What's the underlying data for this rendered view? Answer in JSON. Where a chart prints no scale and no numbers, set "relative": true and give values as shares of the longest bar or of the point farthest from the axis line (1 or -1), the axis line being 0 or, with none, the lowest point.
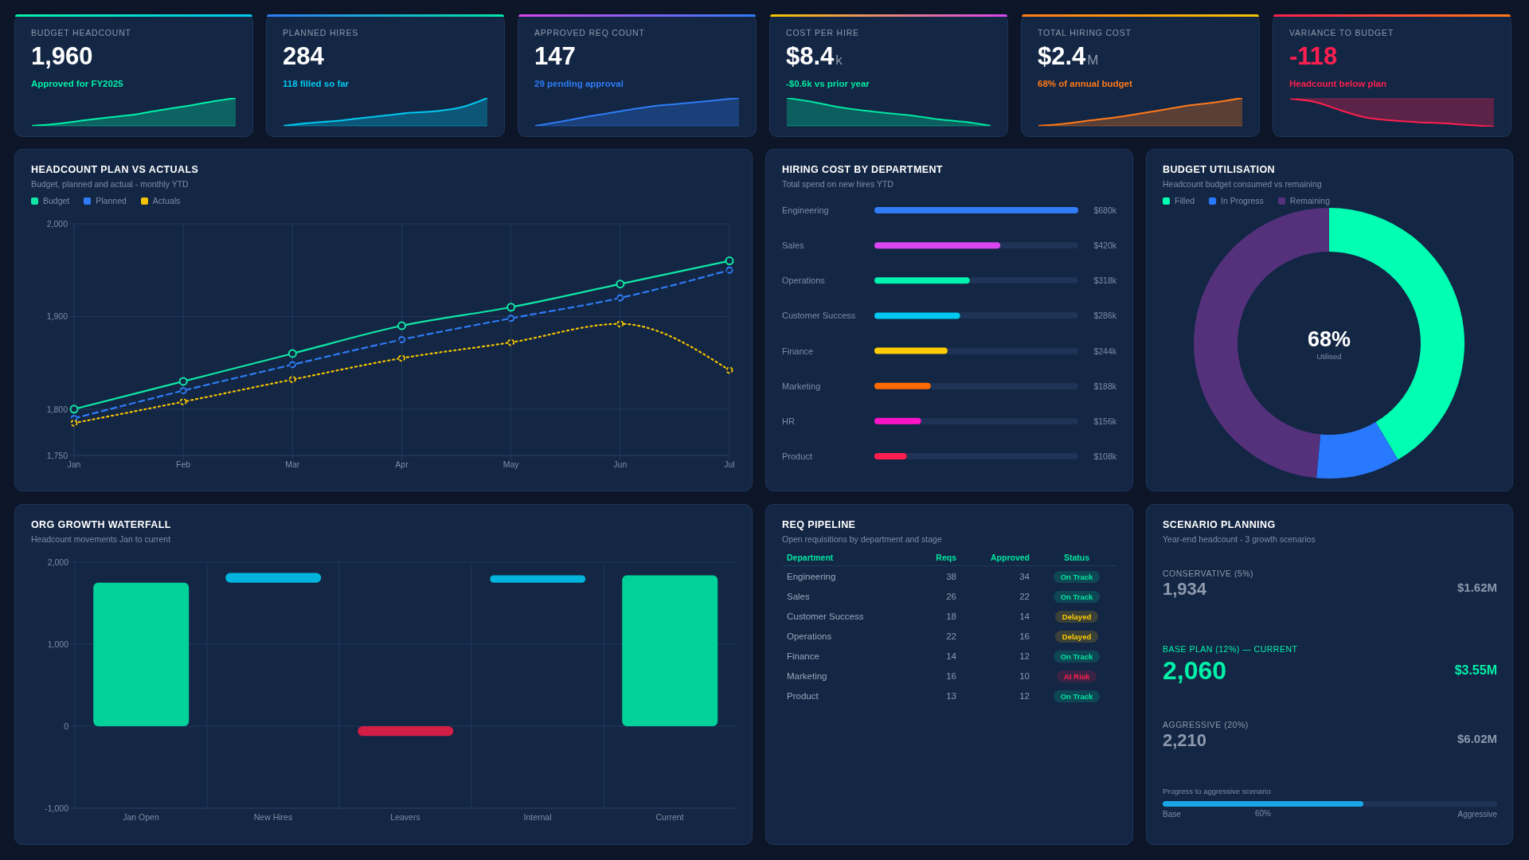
{
  "chart_data": [
    {
      "type": "area",
      "title": "BUDGET HEADCOUNT",
      "subtitle": "Approved for FY2025",
      "annotations": [
        "1,960"
      ],
      "relative": true,
      "categories": [
        null,
        null,
        null,
        null,
        null,
        null,
        null,
        null,
        null
      ],
      "values": [
        0,
        0.07,
        0.19,
        0.3,
        0.4,
        0.56,
        0.7,
        0.86,
        1
      ],
      "color": "#00f0a8"
    },
    {
      "type": "area",
      "title": "PLANNED HIRES",
      "subtitle": "118 filled so far",
      "annotations": [
        "284"
      ],
      "relative": true,
      "categories": [
        null,
        null,
        null,
        null,
        null,
        null,
        null,
        null,
        null
      ],
      "values": [
        0,
        0.1,
        0.17,
        0.27,
        0.37,
        0.47,
        0.53,
        0.67,
        1
      ],
      "color": "#00c8f0"
    },
    {
      "type": "area",
      "title": "APPROVED REQ COUNT",
      "subtitle": "29 pending approval",
      "annotations": [
        "147"
      ],
      "relative": true,
      "categories": [
        null,
        null,
        null,
        null,
        null,
        null,
        null,
        null,
        null
      ],
      "values": [
        0,
        0.15,
        0.32,
        0.47,
        0.62,
        0.74,
        0.82,
        0.91,
        1
      ],
      "color": "#2f7cf6"
    },
    {
      "type": "area",
      "title": "COST PER HIRE",
      "subtitle": "-$0.6k vs prior year",
      "annotations": [
        "$8.4",
        "k"
      ],
      "relative": true,
      "categories": [
        null,
        null,
        null,
        null,
        null,
        null,
        null,
        null,
        null
      ],
      "values": [
        1,
        0.86,
        0.68,
        0.55,
        0.45,
        0.36,
        0.23,
        0.14,
        0
      ],
      "color": "#00e6a0"
    },
    {
      "type": "area",
      "title": "TOTAL HIRING COST",
      "subtitle": "68% of annual budget",
      "annotations": [
        "$2.4",
        "M"
      ],
      "relative": true,
      "categories": [
        null,
        null,
        null,
        null,
        null,
        null,
        null,
        null,
        null
      ],
      "values": [
        0,
        0.07,
        0.19,
        0.3,
        0.44,
        0.59,
        0.74,
        0.85,
        1
      ],
      "color": "#ff7a1a"
    },
    {
      "type": "area",
      "title": "VARIANCE TO BUDGET",
      "subtitle": "Headcount below plan",
      "annotations": [
        "-118"
      ],
      "relative": true,
      "categories": [
        null,
        null,
        null,
        null,
        null,
        null,
        null,
        null,
        null
      ],
      "values": [
        0,
        -0.12,
        -0.42,
        -0.68,
        -0.78,
        -0.84,
        -0.88,
        -0.94,
        -1
      ],
      "color": "#ff1f4f"
    },
    {
      "type": "line",
      "title": "HEADCOUNT PLAN VS ACTUALS",
      "subtitle": "Budget, planned and actual - monthly YTD",
      "categories": [
        "Jan",
        "Feb",
        "Mar",
        "Apr",
        "May",
        "Jun",
        "Jul"
      ],
      "series": [
        {
          "name": "Budget",
          "color": "#10e6a6",
          "values": [
            1800,
            1830,
            1860,
            1890,
            1910,
            1935,
            1960
          ],
          "line_style": "solid"
        },
        {
          "name": "Planned",
          "color": "#2f7cf6",
          "values": [
            1790,
            1820,
            1848,
            1875,
            1898,
            1920,
            1950
          ],
          "line_style": "dashed"
        },
        {
          "name": "Actuals",
          "color": "#f5c400",
          "values": [
            1785,
            1808,
            1832,
            1855,
            1872,
            1892,
            1842
          ],
          "line_style": "dotted"
        }
      ],
      "ylim": [
        1750,
        2000
      ],
      "yticks": [
        {
          "value": 1750,
          "label": "1,750"
        },
        {
          "value": 1800,
          "label": "1,800"
        },
        {
          "value": 1900,
          "label": "1,900"
        },
        {
          "value": 2000,
          "label": "2,000"
        }
      ],
      "grid": true,
      "legend": "top left",
      "marker": "circle"
    },
    {
      "type": "bar",
      "orientation": "horizontal",
      "title": "HIRING COST BY DEPARTMENT",
      "subtitle": "Total spend on new hires YTD",
      "categories": [
        "Engineering",
        "Sales",
        "Operations",
        "Customer Success",
        "Finance",
        "Marketing",
        "HR",
        "Product"
      ],
      "values": [
        680,
        420,
        318,
        286,
        244,
        188,
        156,
        108
      ],
      "value_labels": [
        "$680k",
        "$420k",
        "$318k",
        "$286k",
        "$244k",
        "$188k",
        "$156k",
        "$108k"
      ],
      "colors": [
        "#2f7cf6",
        "#d946ef",
        "#00f0b0",
        "#00c8f0",
        "#ffcc00",
        "#ff6b00",
        "#ff14c8",
        "#ff1f4f"
      ]
    },
    {
      "type": "donut",
      "title": "BUDGET UTILISATION",
      "subtitle": "Headcount budget consumed vs remaining",
      "categories": [
        "Filled",
        "In Progress",
        "Remaining"
      ],
      "values": [
        41.5,
        10,
        48.5
      ],
      "colors": [
        "#00ffb3",
        "#2979ff",
        "#55317c"
      ],
      "legend": "top left",
      "annotations": [
        "68%",
        "Utilised"
      ]
    },
    {
      "type": "bar",
      "title": "ORG GROWTH WATERFALL",
      "subtitle": "Headcount movements Jan to current",
      "categories": [
        "Jan Open",
        "New Hires",
        "Leavers",
        "Internal",
        "Current"
      ],
      "values": [
        1750,
        120,
        -120,
        90,
        1840
      ],
      "base": [
        0,
        1750,
        0,
        1750,
        0
      ],
      "colors": [
        "#03d19a",
        "#02b4dc",
        "#d21d45",
        "#02b4dc",
        "#03d19a"
      ],
      "ylim": [
        -1000,
        2000
      ],
      "yticks": [
        {
          "value": -1000,
          "label": "-1,000"
        },
        0,
        {
          "value": 1000,
          "label": "1,000"
        },
        {
          "value": 2000,
          "label": "2,000"
        }
      ],
      "grid": true
    },
    {
      "type": "other",
      "title": "REQ PIPELINE",
      "subtitle": "Open requisitions by department and stage",
      "annotations": [
        "Department",
        "Reqs",
        "Approved",
        "Status",
        "Engineering",
        "38",
        "34",
        "On Track",
        "Sales",
        "26",
        "22",
        "On Track",
        "Customer Success",
        "18",
        "14",
        "Delayed",
        "Operations",
        "22",
        "16",
        "Delayed",
        "Finance",
        "14",
        "12",
        "On Track",
        "Marketing",
        "16",
        "10",
        "At Risk",
        "Product",
        "13",
        "12",
        "On Track"
      ],
      "colors": [
        "#00e6a0",
        "#00e6a0",
        "#ffcc00",
        "#ffcc00",
        "#00e6a0",
        "#ff1f4f",
        "#00e6a0"
      ]
    },
    {
      "type": "other",
      "title": "SCENARIO PLANNING",
      "subtitle": "Year-end headcount - 3 growth scenarios",
      "annotations": [
        "CONSERVATIVE (5%)",
        "1,934",
        "$1.62M",
        "BASE PLAN (12%) — CURRENT",
        "2,060",
        "$3.55M",
        "AGGRESSIVE (20%)",
        "2,210",
        "$6.02M"
      ],
      "colors": [
        "#8e99ad",
        "#00f0a8",
        "#8e99ad"
      ]
    },
    {
      "type": "bar",
      "orientation": "horizontal",
      "stacked": true,
      "title": "Progress to aggressive scenario",
      "categories": [
        null
      ],
      "series": [
        {
          "color": "#1aa6e6",
          "values": [
            60
          ],
          "value_labels": [
            "60%"
          ]
        },
        {
          "color": "#1e3355",
          "values": [
            40
          ]
        }
      ],
      "annotations": [
        "Base",
        "Aggressive"
      ]
    }
  ]
}
